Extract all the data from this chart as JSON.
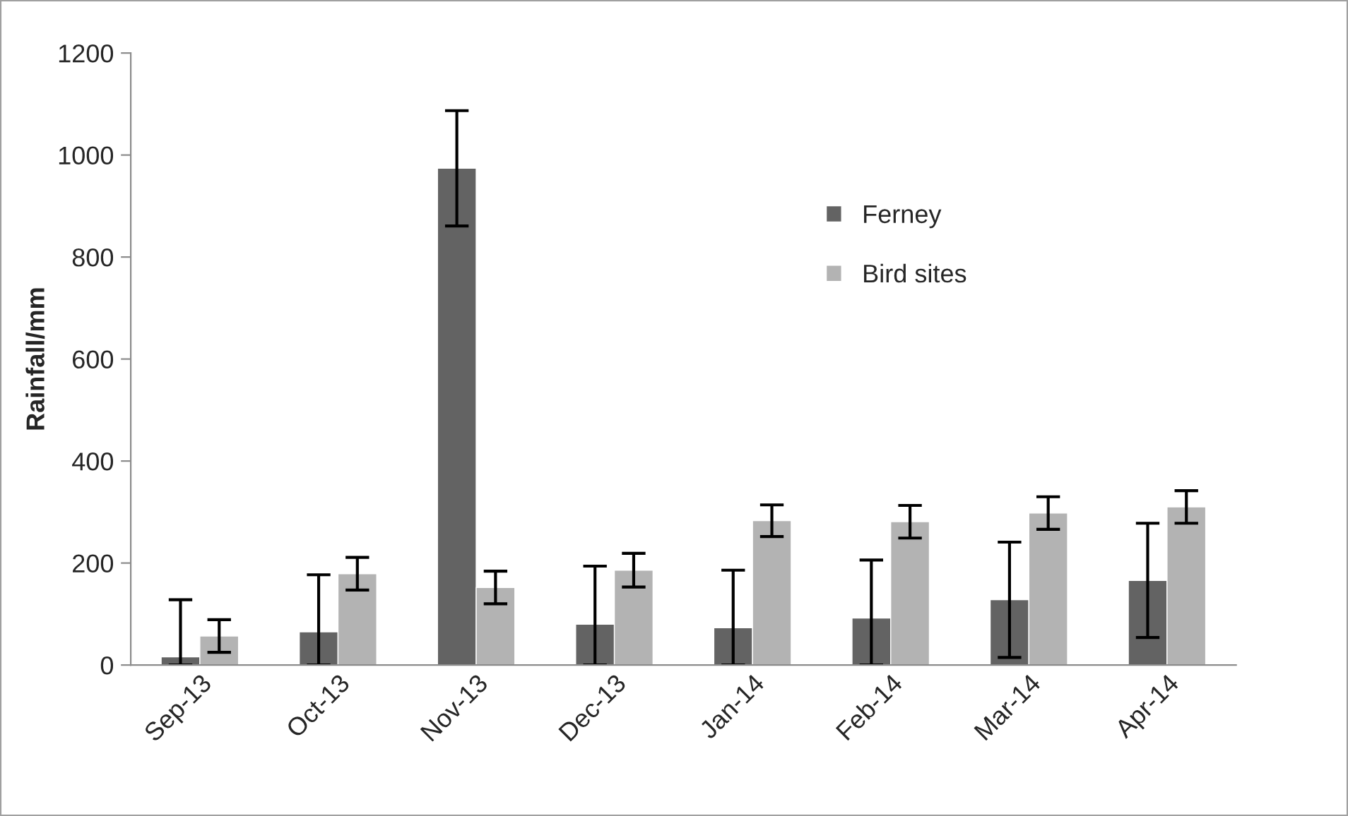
{
  "chart_data": {
    "type": "bar",
    "ylabel": "Rainfall/mm",
    "categories": [
      "Sep-13",
      "Oct-13",
      "Nov-13",
      "Dec-13",
      "Jan-14",
      "Feb-14",
      "Mar-14",
      "Apr-14"
    ],
    "series": [
      {
        "name": "Ferney",
        "color": "#636363",
        "values": [
          16,
          65,
          974,
          80,
          73,
          92,
          128,
          166
        ],
        "errors": [
          [
            0,
            128
          ],
          [
            0,
            177
          ],
          113,
          [
            0,
            194
          ],
          [
            0,
            186
          ],
          [
            0,
            206
          ],
          113,
          112
        ]
      },
      {
        "name": "Bird sites",
        "color": "#b3b3b3",
        "values": [
          57,
          179,
          152,
          186,
          283,
          281,
          298,
          310
        ],
        "errors": [
          32,
          32,
          32,
          33,
          31,
          32,
          32,
          32
        ]
      }
    ],
    "ylim": [
      0,
      1200
    ],
    "yticks": [
      0,
      200,
      400,
      600,
      800,
      1000,
      1200
    ],
    "grid": false,
    "legend": "top right"
  }
}
